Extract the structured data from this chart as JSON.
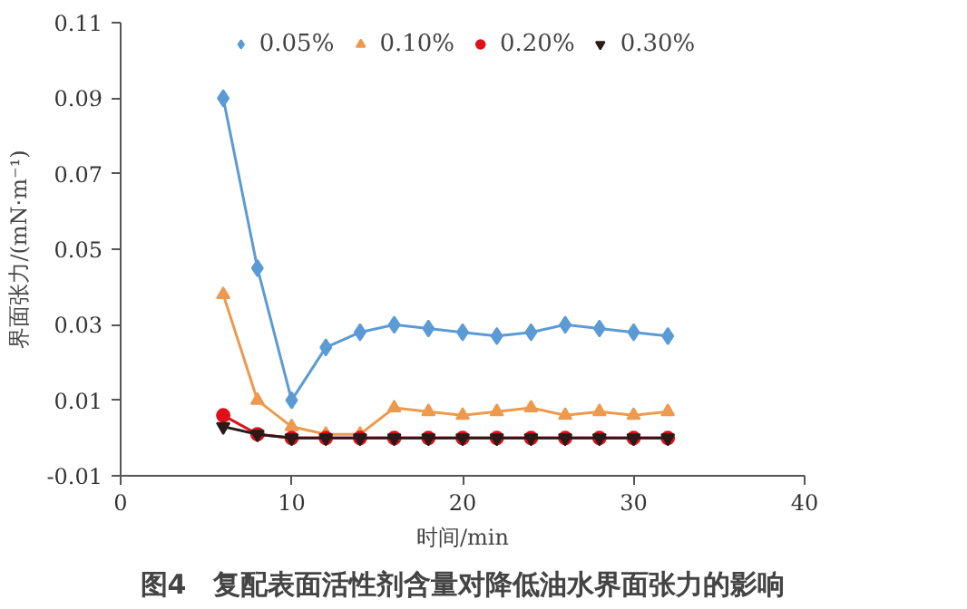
{
  "chart_data": {
    "type": "line",
    "title": "图4　复配表面活性剂含量对降低油水界面张力的影响",
    "xlabel": "时间/min",
    "ylabel": "界面张力/(mN·m⁻¹)",
    "x": [
      6,
      8,
      10,
      12,
      14,
      16,
      18,
      20,
      22,
      24,
      26,
      28,
      30,
      32
    ],
    "series": [
      {
        "name": "0.05%",
        "color": "#5b9bd5",
        "marker": "diamond",
        "values": [
          0.09,
          0.045,
          0.01,
          0.024,
          0.028,
          0.03,
          0.029,
          0.028,
          0.027,
          0.028,
          0.03,
          0.029,
          0.028,
          0.027
        ]
      },
      {
        "name": "0.10%",
        "color": "#ed9a4e",
        "marker": "triangle",
        "values": [
          0.038,
          0.01,
          0.003,
          0.001,
          0.001,
          0.008,
          0.007,
          0.006,
          0.007,
          0.008,
          0.006,
          0.007,
          0.006,
          0.007
        ]
      },
      {
        "name": "0.20%",
        "color": "#e0101a",
        "marker": "circle",
        "values": [
          0.006,
          0.001,
          0.0,
          0.0,
          0.0,
          0.0,
          0.0,
          0.0,
          0.0,
          0.0,
          0.0,
          0.0,
          0.0,
          0.0
        ]
      },
      {
        "name": "0.30%",
        "color": "#2b1a1a",
        "marker": "triangle",
        "values": [
          0.003,
          0.001,
          0.0,
          0.0,
          0.0,
          0.0,
          0.0,
          0.0,
          0.0,
          0.0,
          0.0,
          0.0,
          0.0,
          0.0
        ]
      }
    ],
    "xlim": [
      0,
      40
    ],
    "xticks": [
      0,
      10,
      20,
      30,
      40
    ],
    "ylim": [
      -0.01,
      0.11
    ],
    "yticks": [
      -0.01,
      0.01,
      0.03,
      0.05,
      0.07,
      0.09,
      0.11
    ],
    "grid": false,
    "legend": "top",
    "line_style": "solid"
  }
}
